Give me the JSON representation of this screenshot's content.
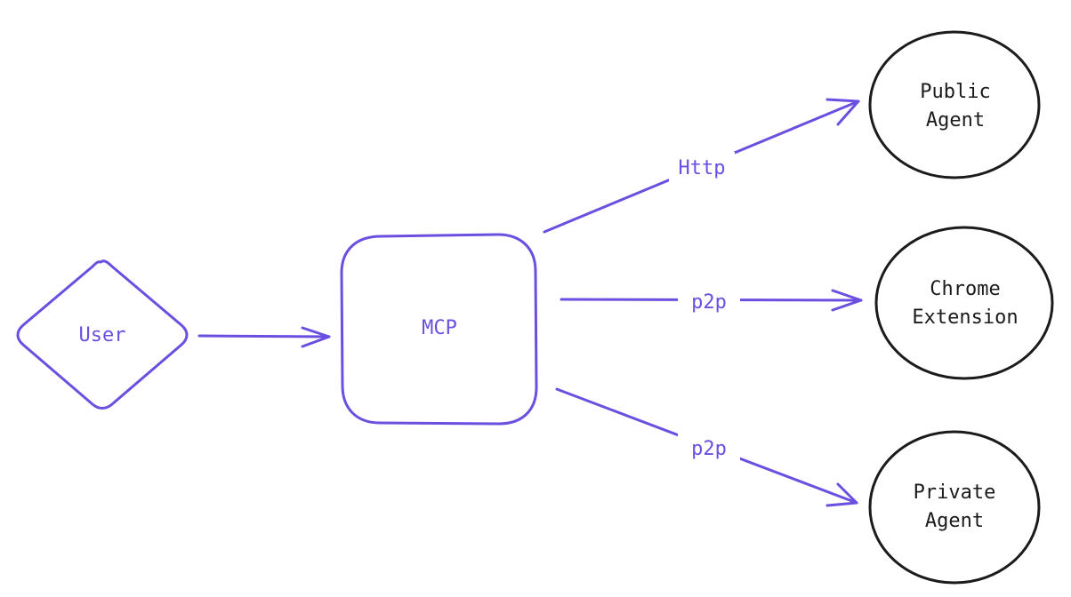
{
  "colors": {
    "accent": "#6b4fe0",
    "node_outline": "#1b1b1b",
    "background": "#ffffff"
  },
  "nodes": {
    "user": {
      "shape": "diamond",
      "label": "User"
    },
    "mcp": {
      "shape": "rounded-square",
      "label": "MCP"
    },
    "public_agent": {
      "shape": "circle",
      "lines": [
        "Public",
        "Agent"
      ]
    },
    "chrome_extension": {
      "shape": "circle",
      "lines": [
        "Chrome",
        "Extension"
      ]
    },
    "private_agent": {
      "shape": "circle",
      "lines": [
        "Private",
        "Agent"
      ]
    }
  },
  "edges": [
    {
      "from": "User",
      "to": "MCP",
      "label": ""
    },
    {
      "from": "MCP",
      "to": "Public Agent",
      "label": "Http"
    },
    {
      "from": "MCP",
      "to": "Chrome Extension",
      "label": "p2p"
    },
    {
      "from": "MCP",
      "to": "Private Agent",
      "label": "p2p"
    }
  ]
}
